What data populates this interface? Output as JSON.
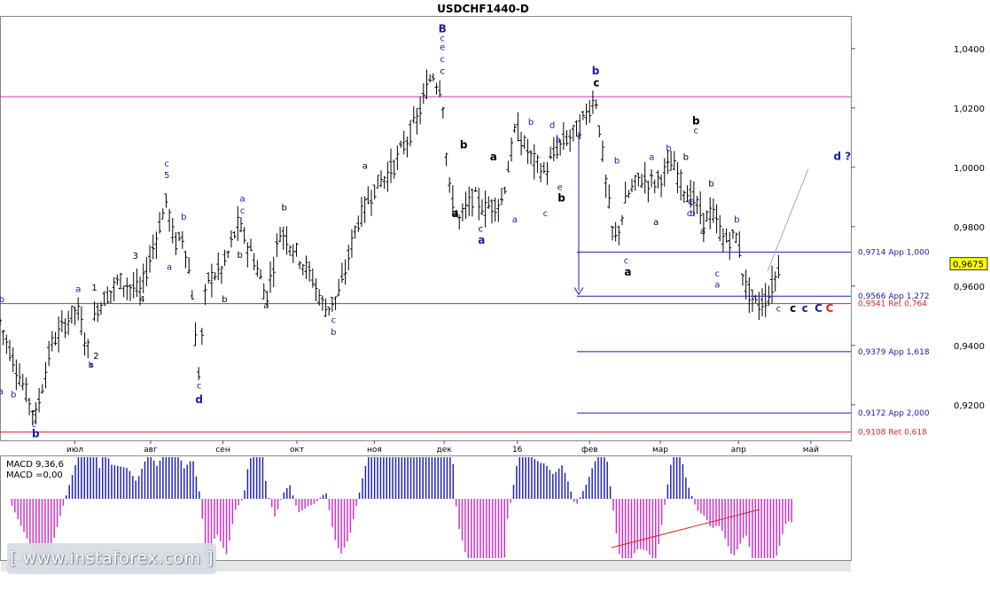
{
  "chart_data": {
    "type": "candlestick",
    "title": "USDCHF1440-D",
    "price_axis": {
      "range": [
        0.908,
        1.051
      ],
      "ticks": [
        1.04,
        1.02,
        1.0,
        0.98,
        0.96,
        0.94,
        0.92
      ],
      "tick_labels": [
        "1,0400",
        "1,0200",
        "1,0000",
        "0,9800",
        "0,9600",
        "0,9400",
        "0,9200"
      ],
      "current_price": 0.9675,
      "current_label": "0,9675"
    },
    "time_axis": {
      "labels": [
        "июл",
        "авг",
        "сен",
        "окт",
        "ноя",
        "дек",
        "16",
        "фев",
        "мар",
        "апр",
        "май"
      ]
    },
    "horizontal_levels": [
      {
        "price": 1.0238,
        "color": "#cc33cc",
        "label": ""
      },
      {
        "price": 0.9541,
        "color": "#dd2222",
        "label": "0,9541 Ret 0,764"
      },
      {
        "price": 0.9108,
        "color": "#dd2222",
        "label": "0,9108 Ret 0,618"
      }
    ],
    "projection_levels": [
      {
        "price": 0.9714,
        "label": "0,9714 App 1,000"
      },
      {
        "price": 0.9566,
        "label": "0,9566 App 1,272"
      },
      {
        "price": 0.9379,
        "label": "0,9379 App 1,618"
      },
      {
        "price": 0.9172,
        "label": "0,9172 App 2,000"
      }
    ],
    "wave_labels": [
      {
        "t": 0.002,
        "p": 0.9545,
        "text": "b",
        "color": "#1a1aaa",
        "bold": false
      },
      {
        "t": 0.001,
        "p": 0.9235,
        "text": "a",
        "color": "#1a1aaa",
        "bold": false
      },
      {
        "t": 0.016,
        "p": 0.9225,
        "text": "b",
        "color": "#1a1aaa",
        "bold": false
      },
      {
        "t": 0.04,
        "p": 0.9165,
        "text": "c",
        "color": "#000000",
        "bold": false
      },
      {
        "t": 0.04,
        "p": 0.9125,
        "text": "c",
        "color": "#1a1aaa",
        "bold": false
      },
      {
        "t": 0.042,
        "p": 0.909,
        "text": "b",
        "color": "#1a1aaa",
        "bold": true
      },
      {
        "t": 0.092,
        "p": 0.958,
        "text": "a",
        "color": "#1a1aaa",
        "bold": false
      },
      {
        "t": 0.107,
        "p": 0.9325,
        "text": "b",
        "color": "#1a1aaa",
        "bold": false
      },
      {
        "t": 0.111,
        "p": 0.9585,
        "text": "1",
        "color": "#000000",
        "bold": false
      },
      {
        "t": 0.113,
        "p": 0.9355,
        "text": "2",
        "color": "#000000",
        "bold": false
      },
      {
        "t": 0.159,
        "p": 0.9692,
        "text": "3",
        "color": "#000000",
        "bold": false
      },
      {
        "t": 0.167,
        "p": 0.9545,
        "text": "4",
        "color": "#000000",
        "bold": false
      },
      {
        "t": 0.196,
        "p": 1.0003,
        "text": "c",
        "color": "#1a1aaa",
        "bold": false
      },
      {
        "t": 0.196,
        "p": 0.9963,
        "text": "5",
        "color": "#1a1aaa",
        "bold": false
      },
      {
        "t": 0.216,
        "p": 0.9824,
        "text": "b",
        "color": "#1a1aaa",
        "bold": false
      },
      {
        "t": 0.199,
        "p": 0.9655,
        "text": "a",
        "color": "#1a1aaa",
        "bold": false
      },
      {
        "t": 0.234,
        "p": 0.9255,
        "text": "c",
        "color": "#1a1aaa",
        "bold": false
      },
      {
        "t": 0.234,
        "p": 0.9205,
        "text": "d",
        "color": "#1a1aaa",
        "bold": true
      },
      {
        "t": 0.282,
        "p": 0.9695,
        "text": "b",
        "color": "#000000",
        "bold": false
      },
      {
        "t": 0.264,
        "p": 0.9545,
        "text": "b",
        "color": "#000000",
        "bold": false
      },
      {
        "t": 0.285,
        "p": 0.9885,
        "text": "a",
        "color": "#1a1aaa",
        "bold": false
      },
      {
        "t": 0.285,
        "p": 0.9845,
        "text": "c",
        "color": "#1a1aaa",
        "bold": false
      },
      {
        "t": 0.334,
        "p": 0.9855,
        "text": "b",
        "color": "#000000",
        "bold": false
      },
      {
        "t": 0.313,
        "p": 0.9525,
        "text": "a",
        "color": "#000000",
        "bold": false
      },
      {
        "t": 0.392,
        "p": 0.9475,
        "text": "c",
        "color": "#1a1aaa",
        "bold": false
      },
      {
        "t": 0.392,
        "p": 0.9435,
        "text": "b",
        "color": "#1a1aaa",
        "bold": false
      },
      {
        "t": 0.429,
        "p": 0.9995,
        "text": "a",
        "color": "#000000",
        "bold": false
      },
      {
        "t": 0.52,
        "p": 1.0455,
        "text": "B",
        "color": "#1a1aaa",
        "bold": true
      },
      {
        "t": 0.52,
        "p": 1.0425,
        "text": "c",
        "color": "#1a1aaa",
        "bold": false
      },
      {
        "t": 0.52,
        "p": 1.0395,
        "text": "e",
        "color": "#1a1aaa",
        "bold": false
      },
      {
        "t": 0.52,
        "p": 1.0355,
        "text": "c",
        "color": "#1a1aaa",
        "bold": false
      },
      {
        "t": 0.52,
        "p": 1.0315,
        "text": "c",
        "color": "#000000",
        "bold": false
      },
      {
        "t": 0.545,
        "p": 1.0063,
        "text": "b",
        "color": "#000000",
        "bold": true
      },
      {
        "t": 0.535,
        "p": 0.9833,
        "text": "a",
        "color": "#000000",
        "bold": true
      },
      {
        "t": 0.58,
        "p": 1.0023,
        "text": "a",
        "color": "#000000",
        "bold": true
      },
      {
        "t": 0.565,
        "p": 0.9783,
        "text": "c",
        "color": "#000000",
        "bold": false
      },
      {
        "t": 0.566,
        "p": 0.9743,
        "text": "a",
        "color": "#1a1aaa",
        "bold": true
      },
      {
        "t": 0.605,
        "p": 0.9815,
        "text": "a",
        "color": "#1a1aaa",
        "bold": false
      },
      {
        "t": 0.624,
        "p": 1.0143,
        "text": "b",
        "color": "#1a1aaa",
        "bold": false
      },
      {
        "t": 0.649,
        "p": 1.0133,
        "text": "d",
        "color": "#1a1aaa",
        "bold": false
      },
      {
        "t": 0.656,
        "p": 1.0083,
        "text": "a",
        "color": "#1a1aaa",
        "bold": false
      },
      {
        "t": 0.641,
        "p": 0.9835,
        "text": "c",
        "color": "#1a1aaa",
        "bold": false
      },
      {
        "t": 0.658,
        "p": 0.9923,
        "text": "e",
        "color": "#1a1aaa",
        "bold": false
      },
      {
        "t": 0.66,
        "p": 0.9885,
        "text": "b",
        "color": "#000000",
        "bold": true
      },
      {
        "t": 0.7,
        "p": 1.0313,
        "text": "b",
        "color": "#1a1aaa",
        "bold": true
      },
      {
        "t": 0.701,
        "p": 1.0273,
        "text": "c",
        "color": "#000000",
        "bold": true
      },
      {
        "t": 0.725,
        "p": 1.0013,
        "text": "b",
        "color": "#1a1aaa",
        "bold": false
      },
      {
        "t": 0.736,
        "p": 0.9675,
        "text": "c",
        "color": "#1a1aaa",
        "bold": false
      },
      {
        "t": 0.738,
        "p": 0.9635,
        "text": "a",
        "color": "#000000",
        "bold": true
      },
      {
        "t": 0.766,
        "p": 1.0025,
        "text": "a",
        "color": "#1a1aaa",
        "bold": false
      },
      {
        "t": 0.786,
        "p": 1.0055,
        "text": "b",
        "color": "#1a1aaa",
        "bold": false
      },
      {
        "t": 0.771,
        "p": 0.9805,
        "text": "a",
        "color": "#000000",
        "bold": false
      },
      {
        "t": 0.806,
        "p": 1.0025,
        "text": "b",
        "color": "#000000",
        "bold": false
      },
      {
        "t": 0.818,
        "p": 1.0145,
        "text": "b",
        "color": "#000000",
        "bold": true
      },
      {
        "t": 0.818,
        "p": 1.0115,
        "text": "c",
        "color": "#1a1aaa",
        "bold": false
      },
      {
        "t": 0.811,
        "p": 0.9875,
        "text": "c",
        "color": "#1a1aaa",
        "bold": false
      },
      {
        "t": 0.81,
        "p": 0.9835,
        "text": "c",
        "color": "#1a1aaa",
        "bold": false
      },
      {
        "t": 0.813,
        "p": 0.9875,
        "text": "e",
        "color": "#1a1aaa",
        "bold": false
      },
      {
        "t": 0.814,
        "p": 0.9835,
        "text": "b",
        "color": "#1a1aaa",
        "bold": false
      },
      {
        "t": 0.826,
        "p": 0.9775,
        "text": "a",
        "color": "#000000",
        "bold": false
      },
      {
        "t": 0.836,
        "p": 0.9935,
        "text": "b",
        "color": "#000000",
        "bold": false
      },
      {
        "t": 0.866,
        "p": 0.9815,
        "text": "b",
        "color": "#1a1aaa",
        "bold": false
      },
      {
        "t": 0.843,
        "p": 0.9633,
        "text": "c",
        "color": "#1a1aaa",
        "bold": false
      },
      {
        "t": 0.843,
        "p": 0.9595,
        "text": "a",
        "color": "#1a1aaa",
        "bold": false
      },
      {
        "t": 0.915,
        "p": 0.9515,
        "text": "c",
        "color": "#1a1aaa",
        "bold": false
      },
      {
        "t": 0.932,
        "p": 0.9513,
        "text": "c",
        "color": "#000000",
        "bold": true
      },
      {
        "t": 0.946,
        "p": 0.9513,
        "text": "c",
        "color": "#1a1aaa",
        "bold": true
      },
      {
        "t": 0.962,
        "p": 0.9513,
        "text": "C",
        "color": "#1a1aaa",
        "bold": true
      },
      {
        "t": 0.975,
        "p": 0.9513,
        "text": "C",
        "color": "#dd2222",
        "bold": true
      },
      {
        "t": 0.99,
        "p": 1.0025,
        "text": "d ?",
        "color": "#1a1aaa",
        "bold": true
      }
    ],
    "indicator": {
      "title_line1": "MACD 9,36,6",
      "title_line2": "MACD =0,00"
    }
  },
  "watermark": "[ www.instaforex.com ]"
}
